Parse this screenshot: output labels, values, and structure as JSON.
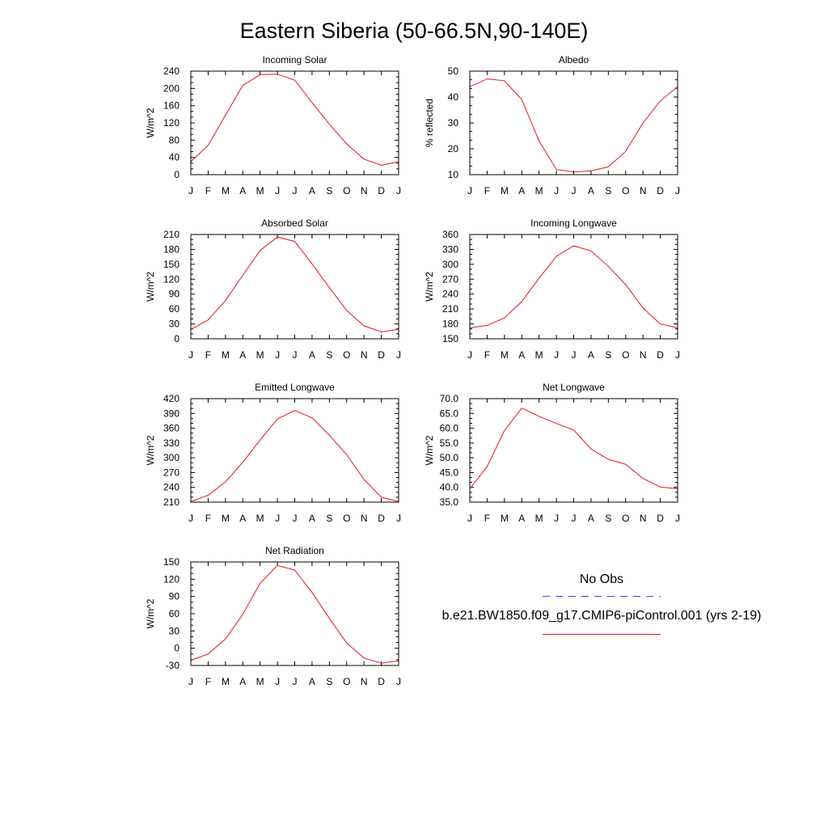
{
  "page_title": "Eastern Siberia (50-66.5N,90-140E)",
  "colors": {
    "model_line": "#e8141c",
    "obs_line": "#4040e0",
    "frame": "#000000"
  },
  "legend": {
    "obs_label": "No Obs",
    "model_label": "b.e21.BW1850.f09_g17.CMIP6-piControl.001 (yrs 2-19)"
  },
  "chart_data": [
    {
      "type": "line",
      "title": "Incoming Solar",
      "ylabel": "W/m^2",
      "ylim": [
        0,
        240
      ],
      "yticks": [
        "0",
        "40",
        "80",
        "120",
        "160",
        "200",
        "240"
      ],
      "ytick_values": [
        0,
        40,
        80,
        120,
        160,
        200,
        240
      ],
      "categories": [
        "J",
        "F",
        "M",
        "A",
        "M",
        "J",
        "J",
        "A",
        "S",
        "O",
        "N",
        "D",
        "J"
      ],
      "values": [
        30,
        68,
        138,
        207,
        232,
        233,
        219,
        167,
        117,
        71,
        36,
        22,
        30
      ]
    },
    {
      "type": "line",
      "title": "Albedo",
      "ylabel": "% reflected",
      "ylim": [
        10,
        50
      ],
      "yticks": [
        "10",
        "20",
        "30",
        "40",
        "50"
      ],
      "ytick_values": [
        10,
        20,
        30,
        40,
        50
      ],
      "categories": [
        "J",
        "F",
        "M",
        "A",
        "M",
        "J",
        "J",
        "A",
        "S",
        "O",
        "N",
        "D",
        "J"
      ],
      "values": [
        44,
        47,
        46.3,
        39,
        23,
        12,
        11,
        11.5,
        13,
        19,
        30,
        38.5,
        44
      ]
    },
    {
      "type": "line",
      "title": "Absorbed Solar",
      "ylabel": "W/m^2",
      "ylim": [
        0,
        210
      ],
      "yticks": [
        "0",
        "30",
        "60",
        "90",
        "120",
        "150",
        "180",
        "210"
      ],
      "ytick_values": [
        0,
        30,
        60,
        90,
        120,
        150,
        180,
        210
      ],
      "categories": [
        "J",
        "F",
        "M",
        "A",
        "M",
        "J",
        "J",
        "A",
        "S",
        "O",
        "N",
        "D",
        "J"
      ],
      "values": [
        19,
        38,
        77,
        128,
        178,
        205,
        196,
        151,
        103,
        57,
        26,
        14,
        19
      ]
    },
    {
      "type": "line",
      "title": "Incoming Longwave",
      "ylabel": "W/m^2",
      "ylim": [
        150,
        360
      ],
      "yticks": [
        "150",
        "180",
        "210",
        "240",
        "270",
        "300",
        "330",
        "360"
      ],
      "ytick_values": [
        150,
        180,
        210,
        240,
        270,
        300,
        330,
        360
      ],
      "categories": [
        "J",
        "F",
        "M",
        "A",
        "M",
        "J",
        "J",
        "A",
        "S",
        "O",
        "N",
        "D",
        "J"
      ],
      "values": [
        172,
        177,
        192,
        225,
        272,
        316,
        337,
        327,
        296,
        259,
        212,
        180,
        172
      ]
    },
    {
      "type": "line",
      "title": "Emitted Longwave",
      "ylabel": "W/m^2",
      "ylim": [
        210,
        420
      ],
      "yticks": [
        "210",
        "240",
        "270",
        "300",
        "330",
        "360",
        "390",
        "420"
      ],
      "ytick_values": [
        210,
        240,
        270,
        300,
        330,
        360,
        390,
        420
      ],
      "categories": [
        "J",
        "F",
        "M",
        "A",
        "M",
        "J",
        "J",
        "A",
        "S",
        "O",
        "N",
        "D",
        "J"
      ],
      "values": [
        211,
        224,
        251,
        291,
        336,
        379,
        396,
        381,
        346,
        306,
        256,
        220,
        211
      ]
    },
    {
      "type": "line",
      "title": "Net Longwave",
      "ylabel": "W/m^2",
      "ylim": [
        35,
        70
      ],
      "yticks": [
        "35.0",
        "40.0",
        "45.0",
        "50.0",
        "55.0",
        "60.0",
        "65.0",
        "70.0"
      ],
      "ytick_values": [
        35,
        40,
        45,
        50,
        55,
        60,
        65,
        70
      ],
      "categories": [
        "J",
        "F",
        "M",
        "A",
        "M",
        "J",
        "J",
        "A",
        "S",
        "O",
        "N",
        "D",
        "J"
      ],
      "values": [
        39.5,
        47,
        59.2,
        66.8,
        64,
        61.6,
        59.4,
        53,
        49.5,
        47.8,
        43,
        40.1,
        39.5
      ]
    },
    {
      "type": "line",
      "title": "Net Radiation",
      "ylabel": "W/m^2",
      "ylim": [
        -30,
        150
      ],
      "yticks": [
        "-30",
        "0",
        "30",
        "60",
        "90",
        "120",
        "150"
      ],
      "ytick_values": [
        -30,
        0,
        30,
        60,
        90,
        120,
        150
      ],
      "categories": [
        "J",
        "F",
        "M",
        "A",
        "M",
        "J",
        "J",
        "A",
        "S",
        "O",
        "N",
        "D",
        "J"
      ],
      "values": [
        -21,
        -10,
        16,
        59,
        113,
        144,
        136,
        97,
        52,
        9,
        -17,
        -26,
        -22
      ]
    }
  ]
}
